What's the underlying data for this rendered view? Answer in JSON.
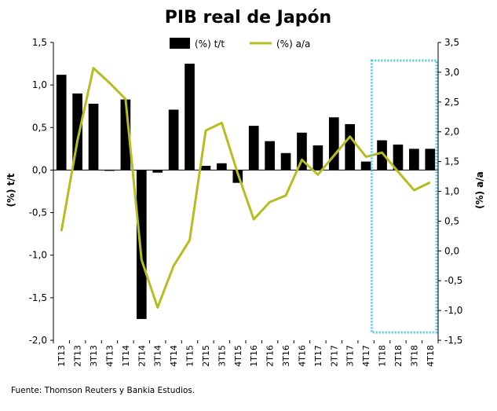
{
  "chart_data": {
    "type": "bar-line-combo",
    "title": "PIB real de Japón",
    "categories": [
      "1T13",
      "2T13",
      "3T13",
      "4T13",
      "1T14",
      "2T14",
      "3T14",
      "4T14",
      "1T15",
      "2T15",
      "3T15",
      "4T15",
      "1T16",
      "2T16",
      "3T16",
      "4T16",
      "1T17",
      "2T17",
      "3T17",
      "4T17",
      "1T18",
      "2T18",
      "3T18",
      "4T18"
    ],
    "series": [
      {
        "name": "(%) t/t",
        "type": "bar",
        "axis": "left",
        "color": "#000000",
        "values": [
          1.12,
          0.9,
          0.78,
          0.0,
          0.83,
          -1.75,
          -0.03,
          0.71,
          1.25,
          0.05,
          0.08,
          -0.15,
          0.52,
          0.34,
          0.2,
          0.44,
          0.29,
          0.62,
          0.54,
          0.1,
          0.35,
          0.3,
          0.25,
          0.25
        ]
      },
      {
        "name": "(%) a/a",
        "type": "line",
        "axis": "right",
        "color": "#b5be1e",
        "values": [
          0.33,
          1.85,
          3.07,
          2.82,
          2.55,
          -0.15,
          -0.95,
          -0.25,
          0.18,
          2.02,
          2.15,
          1.3,
          0.53,
          0.82,
          0.93,
          1.53,
          1.28,
          1.6,
          1.92,
          1.58,
          1.65,
          1.33,
          1.02,
          1.15
        ]
      }
    ],
    "y_left": {
      "label": "(%) t/t",
      "min": -2.0,
      "max": 1.5,
      "ticks": [
        -2.0,
        -1.5,
        -1.0,
        -0.5,
        0.0,
        0.5,
        1.0,
        1.5
      ],
      "tick_labels": [
        "-2,0",
        "-1,5",
        "-1,0",
        "-0,5",
        "0,0",
        "0,5",
        "1,0",
        "1,5"
      ]
    },
    "y_right": {
      "label": "(%) a/a",
      "min": -1.5,
      "max": 3.5,
      "ticks": [
        -1.5,
        -1.0,
        -0.5,
        0.0,
        0.5,
        1.0,
        1.5,
        2.0,
        2.5,
        3.0,
        3.5
      ],
      "tick_labels": [
        "-1,5",
        "-1,0",
        "-0,5",
        "0,0",
        "0,5",
        "1,0",
        "1,5",
        "2,0",
        "2,5",
        "3,0",
        "3,5"
      ]
    },
    "highlight": {
      "from": "1T18",
      "to": "4T18",
      "style": "dotted box",
      "color": "#5bc8e8"
    },
    "legend": {
      "position": "top"
    },
    "grid": false,
    "source": "Fuente: Thomson Reuters y Bankia Estudios."
  }
}
